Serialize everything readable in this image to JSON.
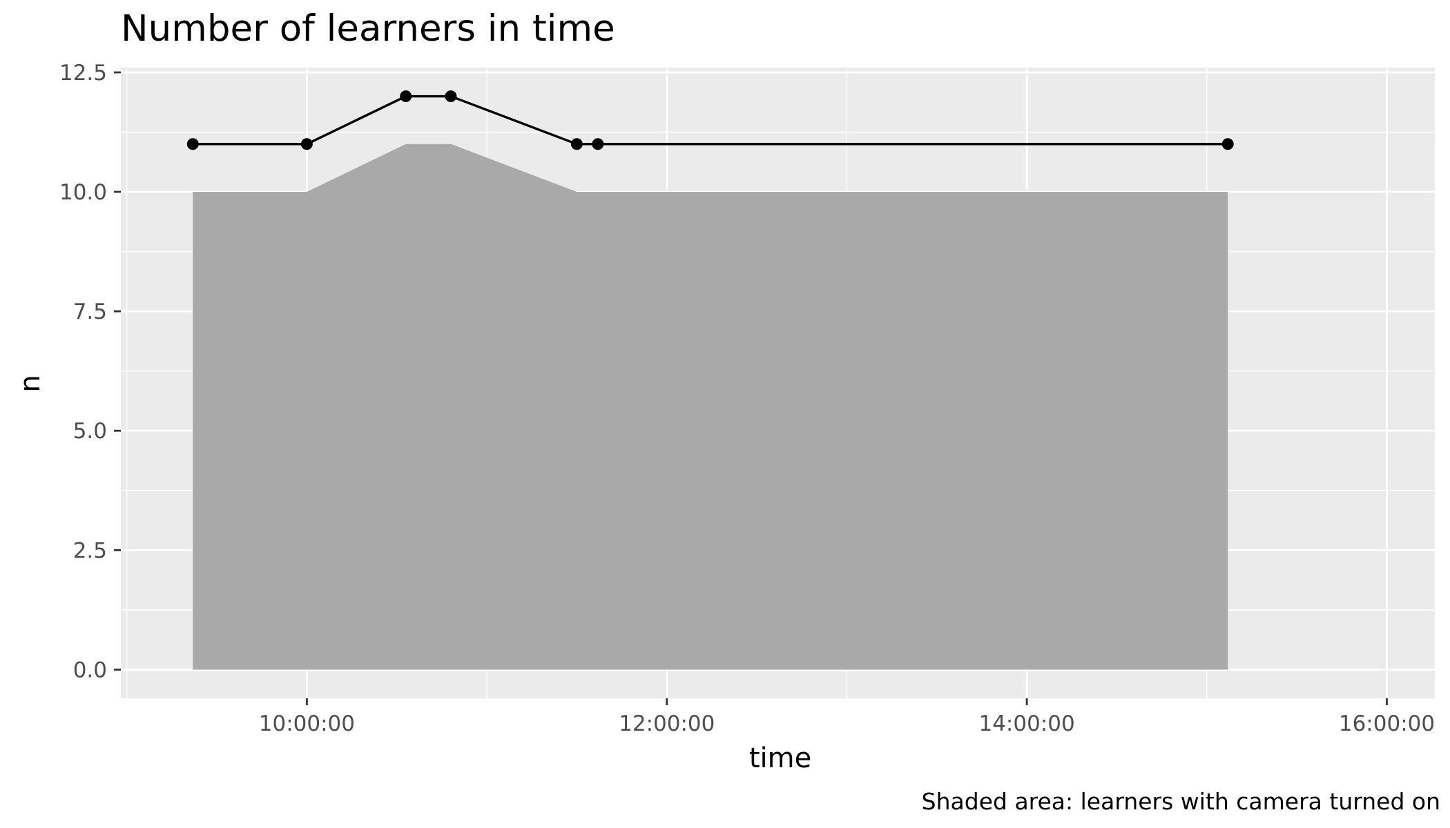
{
  "chart_data": {
    "type": "line",
    "title": "Number of learners in time",
    "xlabel": "time",
    "ylabel": "n",
    "caption": "Shaded area: learners with camera turned on",
    "x_ticks": [
      "10:00:00",
      "12:00:00",
      "14:00:00",
      "16:00:00"
    ],
    "y_ticks": [
      "0.0",
      "2.5",
      "5.0",
      "7.5",
      "10.0",
      "12.5"
    ],
    "ylim": [
      -0.6,
      12.6
    ],
    "xlim": [
      "08:58:00",
      "16:16:00"
    ],
    "grid": true,
    "legend": "none",
    "x": [
      "09:22:00",
      "10:00:00",
      "10:33:00",
      "10:48:00",
      "11:30:00",
      "11:37:00",
      "15:07:00"
    ],
    "series": [
      {
        "values": [
          11,
          11,
          12,
          12,
          11,
          11,
          11
        ],
        "style": "line-with-points",
        "color": "#000000"
      },
      {
        "values": [
          10,
          10,
          11,
          11,
          10,
          10,
          10
        ],
        "style": "area",
        "color": "#a9a9a9"
      }
    ],
    "colors": {
      "panel_background": "#ebebeb",
      "grid": "#ffffff",
      "area_fill": "#a9a9a9",
      "line": "#000000"
    }
  }
}
